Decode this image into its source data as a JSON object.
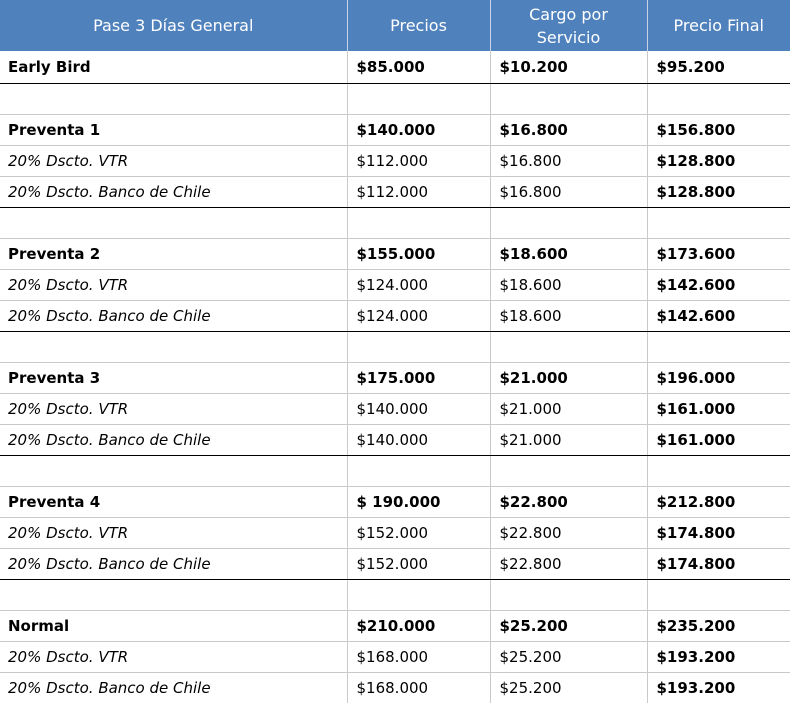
{
  "table": {
    "headers": {
      "col1": "Pase 3 Días General",
      "col2": "Precios",
      "col3_line1": "Cargo por",
      "col3_line2": "Servicio",
      "col4": "Precio Final"
    },
    "early_bird": {
      "label": "Early Bird",
      "precio": "$85.000",
      "cargo": "$10.200",
      "final": "$95.200"
    },
    "groups": [
      {
        "main": {
          "label": "Preventa 1",
          "precio": "$140.000",
          "cargo": "$16.800",
          "final": "$156.800"
        },
        "vtr": {
          "label": "20% Dscto. VTR",
          "precio": "$112.000",
          "cargo": "$16.800",
          "final": "$128.800"
        },
        "banco": {
          "label": "20% Dscto. Banco de Chile",
          "precio": "$112.000",
          "cargo": "$16.800",
          "final": "$128.800"
        }
      },
      {
        "main": {
          "label": "Preventa 2",
          "precio": "$155.000",
          "cargo": "$18.600",
          "final": "$173.600"
        },
        "vtr": {
          "label": "20% Dscto. VTR",
          "precio": "$124.000",
          "cargo": "$18.600",
          "final": "$142.600"
        },
        "banco": {
          "label": "20% Dscto. Banco de Chile",
          "precio": "$124.000",
          "cargo": "$18.600",
          "final": "$142.600"
        }
      },
      {
        "main": {
          "label": "Preventa 3",
          "precio": "$175.000",
          "cargo": "$21.000",
          "final": "$196.000"
        },
        "vtr": {
          "label": "20% Dscto. VTR",
          "precio": "$140.000",
          "cargo": "$21.000",
          "final": "$161.000"
        },
        "banco": {
          "label": "20% Dscto. Banco de Chile",
          "precio": "$140.000",
          "cargo": "$21.000",
          "final": "$161.000"
        }
      },
      {
        "main": {
          "label": "Preventa 4",
          "precio": "$ 190.000",
          "cargo": "$22.800",
          "final": "$212.800"
        },
        "vtr": {
          "label": "20% Dscto. VTR",
          "precio": "$152.000",
          "cargo": "$22.800",
          "final": "$174.800"
        },
        "banco": {
          "label": "20% Dscto. Banco de Chile",
          "precio": "$152.000",
          "cargo": "$22.800",
          "final": "$174.800"
        }
      },
      {
        "main": {
          "label": "Normal",
          "precio": "$210.000",
          "cargo": "$25.200",
          "final": "$235.200"
        },
        "vtr": {
          "label": "20% Dscto. VTR",
          "precio": "$168.000",
          "cargo": "$25.200",
          "final": "$193.200"
        },
        "banco": {
          "label": "20% Dscto. Banco de Chile",
          "precio": "$168.000",
          "cargo": "$25.200",
          "final": "$193.200"
        }
      }
    ],
    "colors": {
      "header_bg": "#4f81bd",
      "header_text": "#ffffff"
    }
  }
}
